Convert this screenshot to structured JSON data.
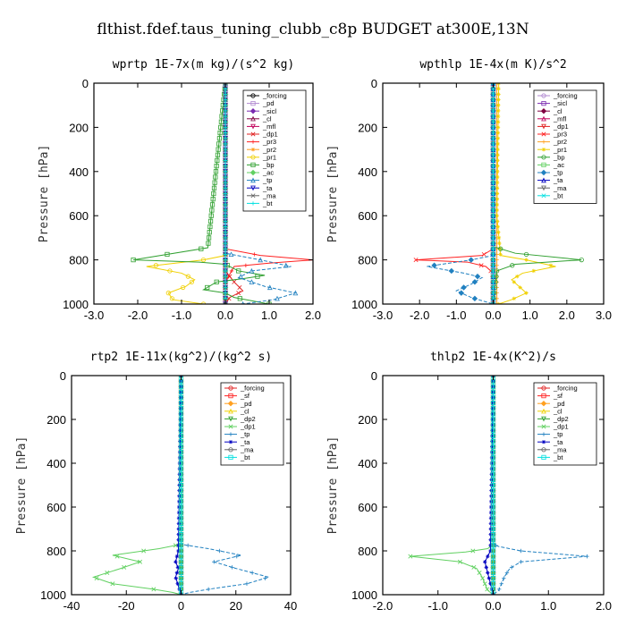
{
  "figure_title": "flthist.fdef.taus_tuning_clubb_c8p  BUDGET at300E,13N",
  "chart_data": [
    {
      "type": "line",
      "title": "wprtp   1E-7x(m kg)/(s^2 kg)",
      "ylabel": "Pressure [hPa]",
      "xlim": [
        -3.0,
        2.0
      ],
      "ylim": [
        1000,
        0
      ],
      "xticks": [
        "-3.0",
        "-2.0",
        "-1.0",
        "0.0",
        "1.0",
        "2.0"
      ],
      "yticks": [
        "0",
        "200",
        "400",
        "600",
        "800",
        "1000"
      ],
      "legend_position": "top-right",
      "series": [
        {
          "name": "_forcing",
          "color": "#000000",
          "x": [
            0,
            0,
            0,
            0,
            0,
            0
          ],
          "y": [
            0,
            200,
            400,
            600,
            800,
            1000
          ]
        },
        {
          "name": "_pd",
          "color": "#b088d0",
          "x": [
            0,
            0,
            0,
            0,
            0
          ],
          "y": [
            0,
            300,
            600,
            900,
            1000
          ]
        },
        {
          "name": "_sicl",
          "color": "#7a2ab0",
          "x": [
            0,
            0,
            0,
            0
          ],
          "y": [
            0,
            500,
            900,
            1000
          ]
        },
        {
          "name": "_cl",
          "color": "#800040",
          "x": [
            0,
            0,
            0,
            0
          ],
          "y": [
            0,
            500,
            900,
            1000
          ]
        },
        {
          "name": "_mfl",
          "color": "#c0005a",
          "x": [
            0,
            0,
            0,
            0
          ],
          "y": [
            0,
            500,
            900,
            1000
          ]
        },
        {
          "name": "_dp1",
          "color": "#e02020",
          "x": [
            0,
            0,
            0.2,
            0.4,
            0.1,
            0
          ],
          "y": [
            0,
            850,
            900,
            940,
            970,
            1000
          ]
        },
        {
          "name": "_pr3",
          "color": "#ff2020",
          "x": [
            0,
            0,
            0.8,
            2.0,
            1.0,
            0.2,
            0,
            0
          ],
          "y": [
            0,
            750,
            780,
            800,
            815,
            830,
            900,
            1000
          ]
        },
        {
          "name": "_pr2",
          "color": "#ffa020",
          "x": [
            0,
            0,
            0,
            0
          ],
          "y": [
            0,
            500,
            900,
            1000
          ]
        },
        {
          "name": "_pr1",
          "color": "#f0d000",
          "x": [
            0,
            0,
            -0.5,
            -1.8,
            -1.0,
            -0.7,
            -0.9,
            -1.3,
            -1.2,
            -0.5,
            0
          ],
          "y": [
            0,
            780,
            800,
            830,
            860,
            890,
            920,
            950,
            980,
            1000,
            1000
          ]
        },
        {
          "name": "_bp",
          "color": "#30a030",
          "x": [
            0,
            -0.4,
            -2.1,
            -0.6,
            0,
            0.3,
            0.9,
            0.4,
            -0.2,
            -0.5,
            0,
            0.2,
            1.0
          ],
          "y": [
            0,
            745,
            800,
            810,
            820,
            850,
            870,
            885,
            900,
            935,
            950,
            970,
            1000
          ]
        },
        {
          "name": "_ac",
          "color": "#60d060",
          "x": [
            0,
            0,
            0,
            0
          ],
          "y": [
            0,
            500,
            900,
            1000
          ]
        },
        {
          "name": "_tp",
          "color": "#2080c0",
          "x": [
            0,
            0,
            0.8,
            1.5,
            0.6,
            0.3,
            0.9,
            1.6,
            1.1,
            0.4,
            0
          ],
          "y": [
            0,
            770,
            800,
            830,
            850,
            880,
            920,
            950,
            980,
            1000,
            1000
          ]
        },
        {
          "name": "_ta",
          "color": "#0000c0",
          "x": [
            0,
            0,
            0,
            0
          ],
          "y": [
            0,
            500,
            900,
            1000
          ]
        },
        {
          "name": "_ma",
          "color": "#606060",
          "x": [
            0,
            0,
            0,
            0
          ],
          "y": [
            0,
            500,
            900,
            1000
          ]
        },
        {
          "name": "_bt",
          "color": "#00e0e0",
          "x": [
            0,
            0,
            0,
            0
          ],
          "y": [
            0,
            500,
            900,
            1000
          ]
        }
      ]
    },
    {
      "type": "line",
      "title": "wpthlp   1E-4x(m K)/s^2",
      "ylabel": "Pressure [hPa]",
      "xlim": [
        -3.0,
        3.0
      ],
      "ylim": [
        1000,
        0
      ],
      "xticks": [
        "-3.0",
        "-2.0",
        "-1.0",
        "0.0",
        "1.0",
        "2.0",
        "3.0"
      ],
      "yticks": [
        "0",
        "200",
        "400",
        "600",
        "800",
        "1000"
      ],
      "legend_position": "top-right",
      "series": [
        {
          "name": "_forcing",
          "color": "#b088d0",
          "x": [
            0,
            0,
            0,
            0,
            0,
            0
          ],
          "y": [
            0,
            200,
            400,
            600,
            800,
            1000
          ]
        },
        {
          "name": "_sicl",
          "color": "#7a2ab0",
          "x": [
            0,
            0,
            0,
            0
          ],
          "y": [
            0,
            500,
            900,
            1000
          ]
        },
        {
          "name": "_cl",
          "color": "#800040",
          "x": [
            0,
            0,
            0,
            0
          ],
          "y": [
            0,
            500,
            900,
            1000
          ]
        },
        {
          "name": "_mfl",
          "color": "#c0005a",
          "x": [
            0,
            0,
            0,
            0
          ],
          "y": [
            0,
            500,
            900,
            1000
          ]
        },
        {
          "name": "_dp1",
          "color": "#e02020",
          "x": [
            0,
            0,
            0,
            0
          ],
          "y": [
            0,
            500,
            900,
            1000
          ]
        },
        {
          "name": "_pr3",
          "color": "#ff2020",
          "x": [
            0,
            0,
            -0.3,
            -2.1,
            -0.7,
            -0.2,
            0,
            0
          ],
          "y": [
            0,
            750,
            780,
            800,
            810,
            830,
            860,
            1000
          ]
        },
        {
          "name": "_pr2",
          "color": "#ffa020",
          "x": [
            0.1,
            0.1,
            0.1,
            0.1
          ],
          "y": [
            0,
            500,
            900,
            1000
          ]
        },
        {
          "name": "_pr1",
          "color": "#f0d000",
          "x": [
            0.15,
            0.1,
            0.2,
            0.9,
            1.7,
            0.8,
            0.5,
            0.7,
            0.9,
            0.5,
            0.15
          ],
          "y": [
            0,
            600,
            780,
            800,
            830,
            860,
            890,
            920,
            950,
            980,
            1000
          ]
        },
        {
          "name": "_bp",
          "color": "#30a030",
          "x": [
            0,
            0,
            0.6,
            2.4,
            0.6,
            0.1,
            0
          ],
          "y": [
            0,
            740,
            770,
            800,
            820,
            850,
            1000
          ]
        },
        {
          "name": "_ac",
          "color": "#60d060",
          "x": [
            0,
            0,
            0,
            0
          ],
          "y": [
            0,
            500,
            900,
            1000
          ]
        },
        {
          "name": "_tp",
          "color": "#2080c0",
          "x": [
            0,
            0,
            -0.6,
            -1.8,
            -0.8,
            -0.3,
            -0.6,
            -1.0,
            -0.6,
            -0.2,
            0
          ],
          "y": [
            0,
            780,
            800,
            830,
            860,
            880,
            910,
            940,
            970,
            990,
            1000
          ]
        },
        {
          "name": "_ta",
          "color": "#0000c0",
          "x": [
            0,
            0,
            0,
            0
          ],
          "y": [
            0,
            500,
            900,
            1000
          ]
        },
        {
          "name": "_ma",
          "color": "#606060",
          "x": [
            0,
            0,
            0,
            0
          ],
          "y": [
            0,
            500,
            900,
            1000
          ]
        },
        {
          "name": "_bt",
          "color": "#00e0e0",
          "x": [
            0,
            0,
            0,
            0
          ],
          "y": [
            0,
            500,
            900,
            1000
          ]
        }
      ]
    },
    {
      "type": "line",
      "title": "rtp2   1E-11x(kg^2)/(kg^2 s)",
      "ylabel": "Pressure [hPa]",
      "xlim": [
        -40,
        40
      ],
      "ylim": [
        1000,
        0
      ],
      "xticks": [
        "-40",
        "-20",
        "0",
        "20",
        "40"
      ],
      "yticks": [
        "0",
        "200",
        "400",
        "600",
        "800",
        "1000"
      ],
      "legend_position": "top-right",
      "series": [
        {
          "name": "_forcing",
          "color": "#e02020",
          "x": [
            0,
            0,
            0,
            0,
            0,
            0
          ],
          "y": [
            0,
            200,
            400,
            600,
            800,
            1000
          ]
        },
        {
          "name": "_sf",
          "color": "#ff2020",
          "x": [
            0,
            0,
            0,
            0
          ],
          "y": [
            0,
            500,
            900,
            1000
          ]
        },
        {
          "name": "_pd",
          "color": "#ffa020",
          "x": [
            0,
            0,
            0,
            0
          ],
          "y": [
            0,
            500,
            900,
            1000
          ]
        },
        {
          "name": "_cl",
          "color": "#f0d000",
          "x": [
            0,
            0,
            0,
            0
          ],
          "y": [
            0,
            500,
            900,
            1000
          ]
        },
        {
          "name": "_dp2",
          "color": "#30a030",
          "x": [
            0,
            0,
            0,
            0
          ],
          "y": [
            0,
            500,
            900,
            1000
          ]
        },
        {
          "name": "_dp1",
          "color": "#60d060",
          "x": [
            0,
            0,
            -8,
            -25,
            -15,
            -22,
            -32,
            -25,
            -10,
            -3,
            0
          ],
          "y": [
            0,
            770,
            790,
            820,
            850,
            880,
            920,
            950,
            975,
            990,
            1000
          ]
        },
        {
          "name": "_tp",
          "color": "#2080c0",
          "x": [
            0,
            0,
            10,
            22,
            12,
            20,
            32,
            24,
            10,
            3,
            0
          ],
          "y": [
            0,
            770,
            790,
            820,
            850,
            880,
            920,
            950,
            975,
            990,
            1000
          ]
        },
        {
          "name": "_ta",
          "color": "#0000c0",
          "x": [
            0,
            -1,
            -2,
            -1,
            -2,
            -1,
            0
          ],
          "y": [
            0,
            800,
            850,
            880,
            920,
            960,
            1000
          ]
        },
        {
          "name": "_ma",
          "color": "#606060",
          "x": [
            0,
            0,
            0,
            0
          ],
          "y": [
            0,
            500,
            900,
            1000
          ]
        },
        {
          "name": "_bt",
          "color": "#00e0e0",
          "x": [
            0,
            0,
            0,
            0
          ],
          "y": [
            0,
            500,
            900,
            1000
          ]
        }
      ]
    },
    {
      "type": "line",
      "title": "thlp2   1E-4x(K^2)/s",
      "ylabel": "Pressure [hPa]",
      "xlim": [
        -2.0,
        2.0
      ],
      "ylim": [
        1000,
        0
      ],
      "xticks": [
        "-2.0",
        "-1.0",
        "0.0",
        "1.0",
        "2.0"
      ],
      "yticks": [
        "0",
        "200",
        "400",
        "600",
        "800",
        "1000"
      ],
      "legend_position": "top-right",
      "series": [
        {
          "name": "_forcing",
          "color": "#e02020",
          "x": [
            0,
            0,
            0,
            0,
            0,
            0
          ],
          "y": [
            0,
            200,
            400,
            600,
            800,
            1000
          ]
        },
        {
          "name": "_sf",
          "color": "#ff2020",
          "x": [
            0,
            0,
            0,
            0
          ],
          "y": [
            0,
            500,
            900,
            1000
          ]
        },
        {
          "name": "_pd",
          "color": "#ffa020",
          "x": [
            0,
            0,
            0,
            0
          ],
          "y": [
            0,
            500,
            900,
            1000
          ]
        },
        {
          "name": "_cl",
          "color": "#f0d000",
          "x": [
            0,
            0,
            0,
            0
          ],
          "y": [
            0,
            500,
            900,
            1000
          ]
        },
        {
          "name": "_dp2",
          "color": "#30a030",
          "x": [
            0,
            0,
            0,
            0
          ],
          "y": [
            0,
            500,
            900,
            1000
          ]
        },
        {
          "name": "_dp1",
          "color": "#60d060",
          "x": [
            0,
            0,
            -0.1,
            -0.5,
            -1.5,
            -0.6,
            -0.3,
            -0.2,
            -0.15,
            -0.1,
            0
          ],
          "y": [
            0,
            770,
            790,
            805,
            825,
            850,
            880,
            920,
            950,
            980,
            1000
          ]
        },
        {
          "name": "_tp",
          "color": "#2080c0",
          "x": [
            0,
            0,
            0.1,
            0.5,
            1.7,
            0.5,
            0.3,
            0.2,
            0.15,
            0.1,
            0
          ],
          "y": [
            0,
            770,
            780,
            800,
            825,
            850,
            880,
            920,
            950,
            980,
            1000
          ]
        },
        {
          "name": "_ta",
          "color": "#0000c0",
          "x": [
            0,
            -0.05,
            -0.15,
            -0.1,
            0
          ],
          "y": [
            0,
            800,
            850,
            900,
            1000
          ]
        },
        {
          "name": "_ma",
          "color": "#606060",
          "x": [
            0,
            0,
            0,
            0
          ],
          "y": [
            0,
            500,
            900,
            1000
          ]
        },
        {
          "name": "_bt",
          "color": "#00e0e0",
          "x": [
            0,
            0,
            0,
            0
          ],
          "y": [
            0,
            500,
            900,
            1000
          ]
        }
      ]
    }
  ]
}
